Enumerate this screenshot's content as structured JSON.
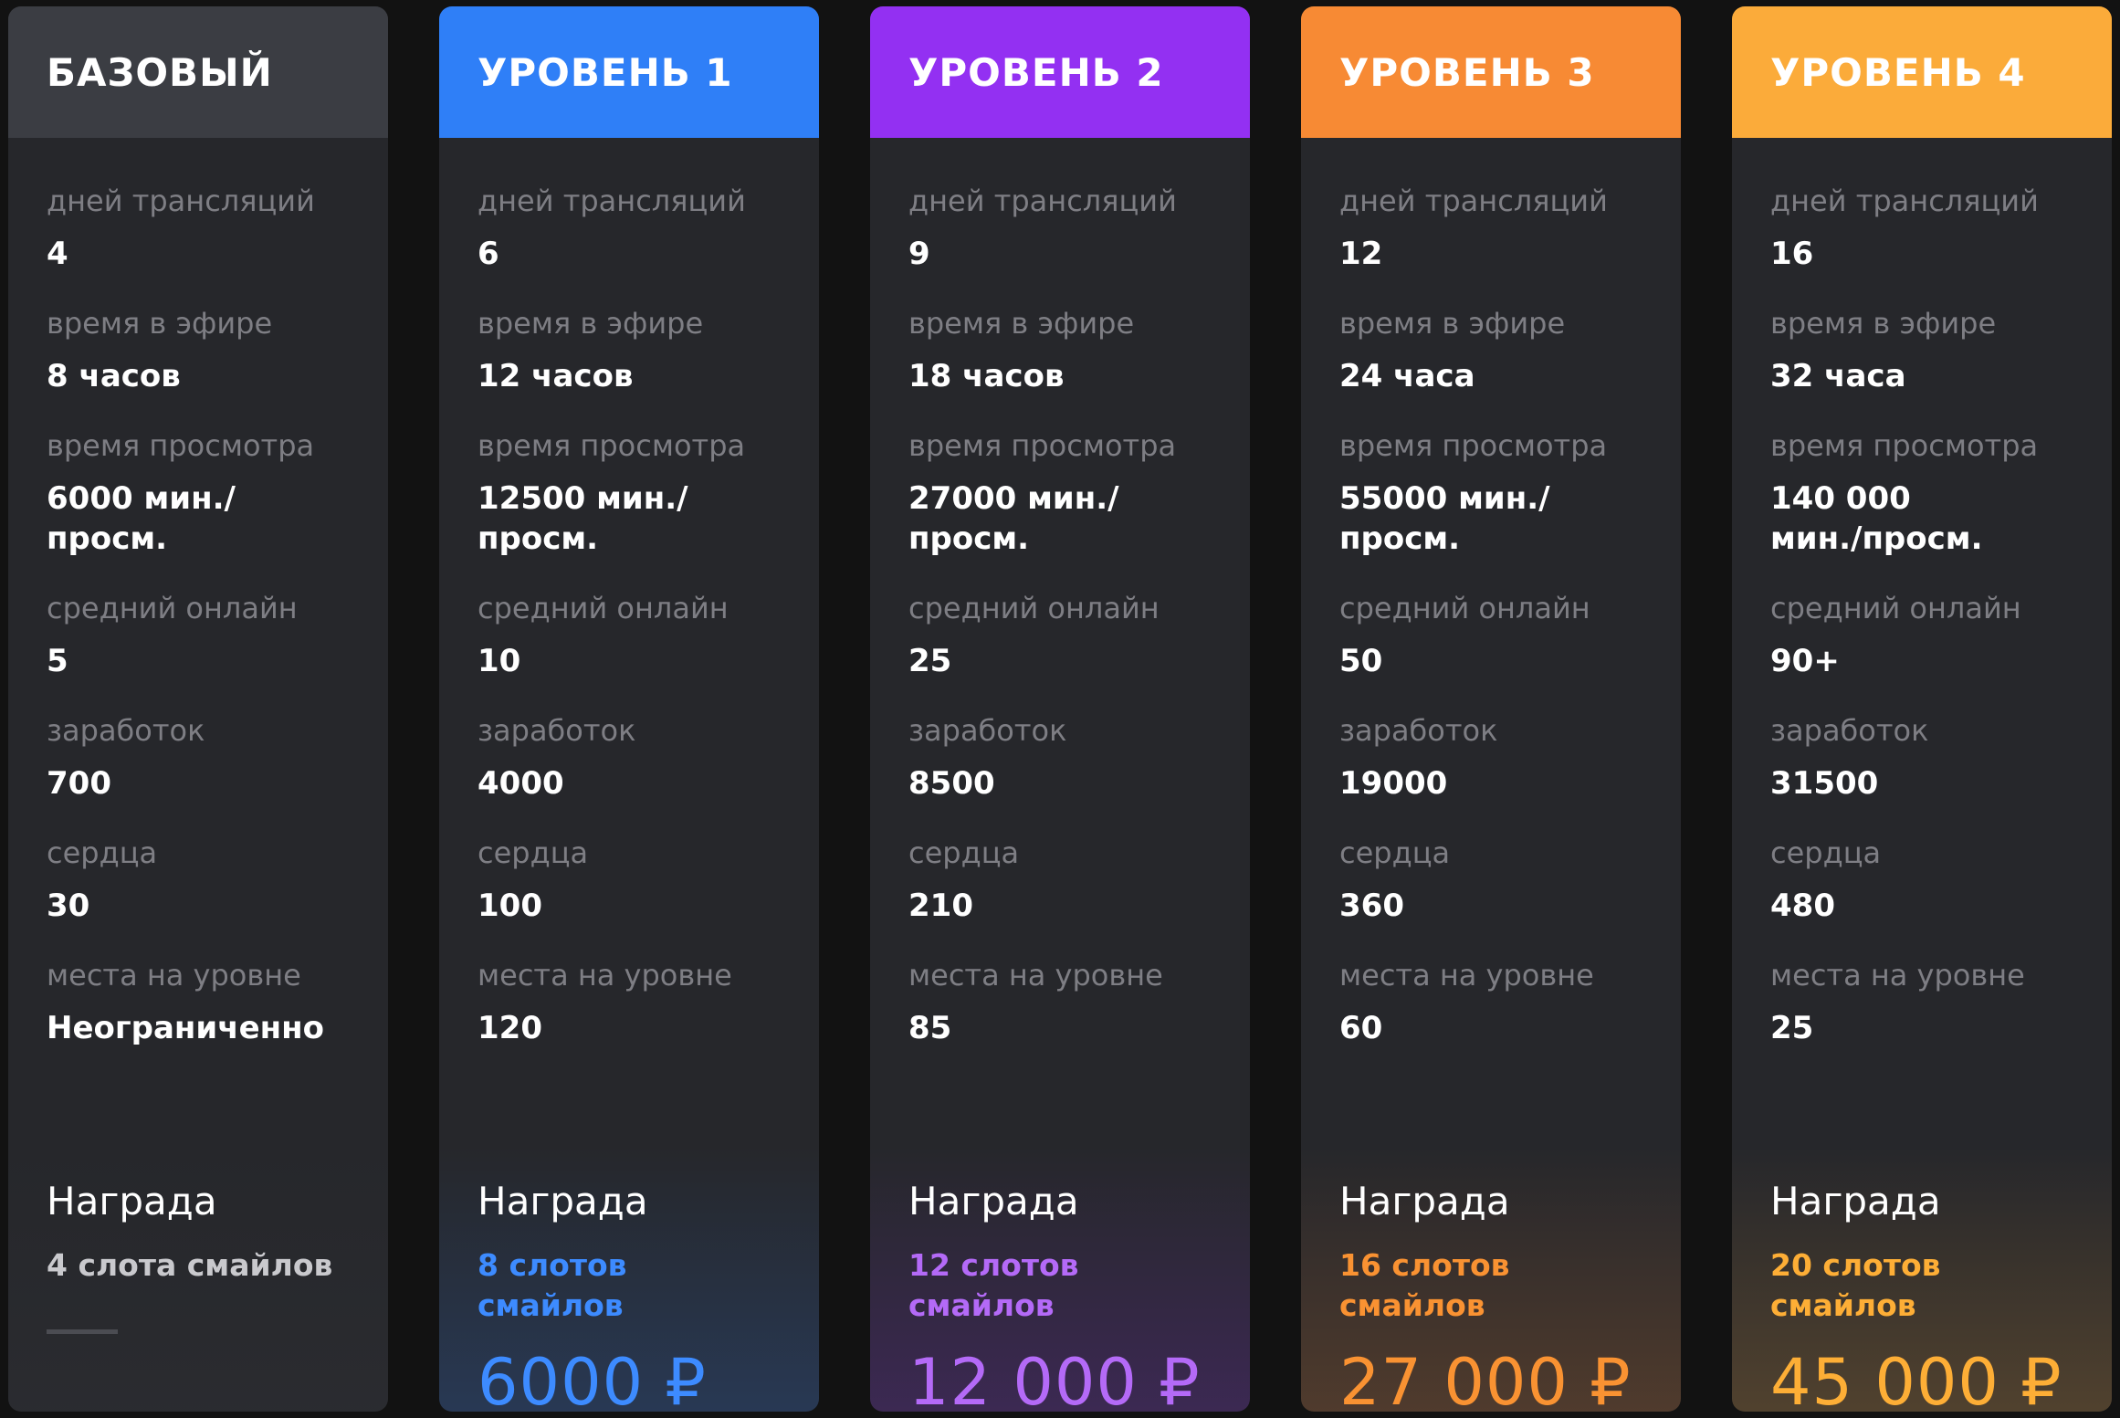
{
  "labels": {
    "days": "дней трансляций",
    "airtime": "время в эфире",
    "viewtime": "время просмотра",
    "online": "средний онлайн",
    "earnings": "заработок",
    "hearts": "сердца",
    "slots": "места на уровне",
    "reward": "Награда"
  },
  "tiers": [
    {
      "title": "БАЗОВЫЙ",
      "days": "4",
      "airtime": "8 часов",
      "viewtime": "6000 мин./просм.",
      "online": "5",
      "earnings": "700",
      "hearts": "30",
      "slots": "Неограниченно",
      "reward_desc": "4 слота смайлов",
      "price": "",
      "header_color": "#3b3d43",
      "accent_color": "#c9c9cd"
    },
    {
      "title": "УРОВЕНЬ 1",
      "days": "6",
      "airtime": "12 часов",
      "viewtime": "12500 мин./просм.",
      "online": "10",
      "earnings": "4000",
      "hearts": "100",
      "slots": "120",
      "reward_desc": "8 слотов смайлов",
      "price": "6000 ₽",
      "header_color": "#2f7ff7",
      "accent_color": "#3d8bff"
    },
    {
      "title": "УРОВЕНЬ 2",
      "days": "9",
      "airtime": "18 часов",
      "viewtime": "27000 мин./просм.",
      "online": "25",
      "earnings": "8500",
      "hearts": "210",
      "slots": "85",
      "reward_desc": "12 слотов смайлов",
      "price": "12 000 ₽",
      "header_color": "#9330f2",
      "accent_color": "#b46af7"
    },
    {
      "title": "УРОВЕНЬ 3",
      "days": "12",
      "airtime": "24 часа",
      "viewtime": "55000 мин./просм.",
      "online": "50",
      "earnings": "19000",
      "hearts": "360",
      "slots": "60",
      "reward_desc": "16 слотов смайлов",
      "price": "27 000 ₽",
      "header_color": "#f78a34",
      "accent_color": "#f99232"
    },
    {
      "title": "УРОВЕНЬ 4",
      "days": "16",
      "airtime": "32 часа",
      "viewtime": "140 000 мин./просм.",
      "online": "90+",
      "earnings": "31500",
      "hearts": "480",
      "slots": "25",
      "reward_desc": "20 слотов смайлов",
      "price": "45 000 ₽",
      "header_color": "#fbab3a",
      "accent_color": "#fdae36"
    }
  ]
}
